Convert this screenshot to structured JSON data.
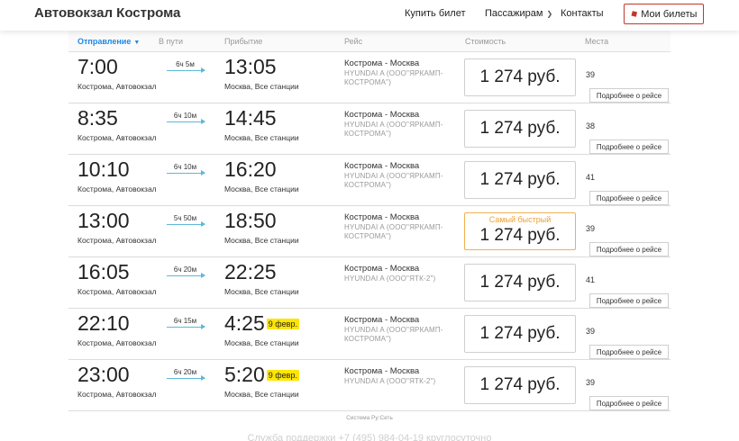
{
  "header": {
    "brand": "Автовокзал Кострома",
    "nav": {
      "buy": "Купить билет",
      "passengers": "Пассажирам",
      "contacts": "Контакты"
    },
    "tickets_button": "Мои билеты"
  },
  "columns": {
    "departure": "Отправление",
    "duration": "В пути",
    "arrival": "Прибытие",
    "route": "Рейс",
    "price": "Стоимость",
    "seats": "Места"
  },
  "trips": [
    {
      "dep_time": "7:00",
      "dep_place": "Кострома, Автовокзал",
      "duration": "6ч 5м",
      "arr_time": "13:05",
      "arr_date": "",
      "arr_place": "Москва, Все станции",
      "route": "Кострома - Москва",
      "bus": "HYUNDAI A (ООО\"ЯРКАМП-КОСТРОМА\")",
      "fastest_label": "",
      "price": "1 274 руб.",
      "seats": "39",
      "details": "Подробнее о рейсе"
    },
    {
      "dep_time": "8:35",
      "dep_place": "Кострома, Автовокзал",
      "duration": "6ч 10м",
      "arr_time": "14:45",
      "arr_date": "",
      "arr_place": "Москва, Все станции",
      "route": "Кострома - Москва",
      "bus": "HYUNDAI A (ООО\"ЯРКАМП-КОСТРОМА\")",
      "fastest_label": "",
      "price": "1 274 руб.",
      "seats": "38",
      "details": "Подробнее о рейсе"
    },
    {
      "dep_time": "10:10",
      "dep_place": "Кострома, Автовокзал",
      "duration": "6ч 10м",
      "arr_time": "16:20",
      "arr_date": "",
      "arr_place": "Москва, Все станции",
      "route": "Кострома - Москва",
      "bus": "HYUNDAI A (ООО\"ЯРКАМП-КОСТРОМА\")",
      "fastest_label": "",
      "price": "1 274 руб.",
      "seats": "41",
      "details": "Подробнее о рейсе"
    },
    {
      "dep_time": "13:00",
      "dep_place": "Кострома, Автовокзал",
      "duration": "5ч 50м",
      "arr_time": "18:50",
      "arr_date": "",
      "arr_place": "Москва, Все станции",
      "route": "Кострома - Москва",
      "bus": "HYUNDAI A (ООО\"ЯРКАМП-КОСТРОМА\")",
      "fastest_label": "Самый быстрый",
      "price": "1 274 руб.",
      "seats": "39",
      "details": "Подробнее о рейсе"
    },
    {
      "dep_time": "16:05",
      "dep_place": "Кострома, Автовокзал",
      "duration": "6ч 20м",
      "arr_time": "22:25",
      "arr_date": "",
      "arr_place": "Москва, Все станции",
      "route": "Кострома - Москва",
      "bus": "HYUNDAI A (ООО\"ЯТК-2\")",
      "fastest_label": "",
      "price": "1 274 руб.",
      "seats": "41",
      "details": "Подробнее о рейсе"
    },
    {
      "dep_time": "22:10",
      "dep_place": "Кострома, Автовокзал",
      "duration": "6ч 15м",
      "arr_time": "4:25",
      "arr_date": "9 февр.",
      "arr_place": "Москва, Все станции",
      "route": "Кострома - Москва",
      "bus": "HYUNDAI A (ООО\"ЯРКАМП-КОСТРОМА\")",
      "fastest_label": "",
      "price": "1 274 руб.",
      "seats": "39",
      "details": "Подробнее о рейсе"
    },
    {
      "dep_time": "23:00",
      "dep_place": "Кострома, Автовокзал",
      "duration": "6ч 20м",
      "arr_time": "5:20",
      "arr_date": "9 февр.",
      "arr_place": "Москва, Все станции",
      "route": "Кострома - Москва",
      "bus": "HYUNDAI A (ООО\"ЯТК-2\")",
      "fastest_label": "",
      "price": "1 274 руб.",
      "seats": "39",
      "details": "Подробнее о рейсе"
    }
  ],
  "footer": {
    "system": "Система Ру:Сеть",
    "support": "Служба поддержки +7 (495) 984-04-19 круглосуточно"
  },
  "colors": {
    "accent_blue": "#1e88e5",
    "brand_red": "#c0392b",
    "fastest_orange": "#f0a030",
    "date_yellow": "#ffe600",
    "arrow_blue": "#5bb9d9"
  }
}
